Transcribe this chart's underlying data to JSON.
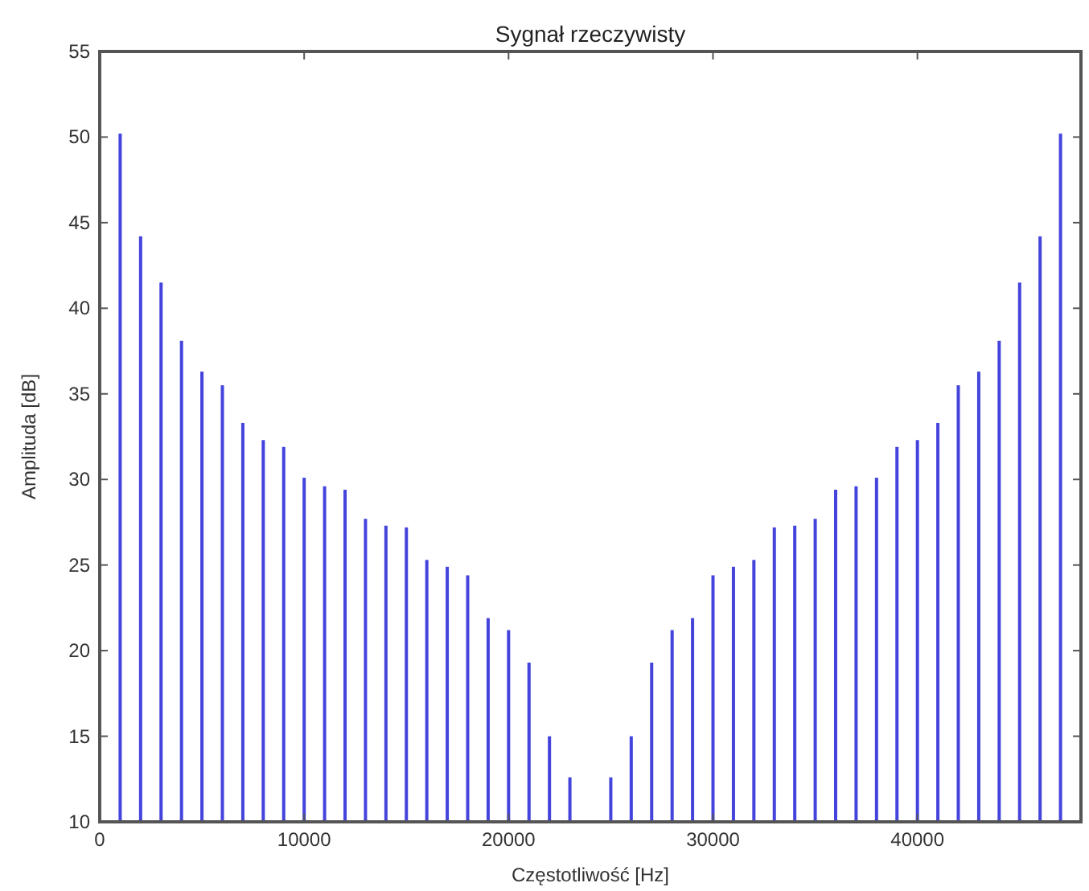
{
  "chart_data": {
    "type": "bar",
    "title": "Sygnał rzeczywisty",
    "xlabel": "Częstotliwość [Hz]",
    "ylabel": "Amplituda [dB]",
    "x": [
      1000,
      2000,
      3000,
      4000,
      5000,
      6000,
      7000,
      8000,
      9000,
      10000,
      11000,
      12000,
      13000,
      14000,
      15000,
      16000,
      17000,
      18000,
      19000,
      20000,
      21000,
      22000,
      23000,
      25000,
      26000,
      27000,
      28000,
      29000,
      30000,
      31000,
      32000,
      33000,
      34000,
      35000,
      36000,
      37000,
      38000,
      39000,
      40000,
      41000,
      42000,
      43000,
      44000,
      45000,
      46000,
      47000
    ],
    "series": [
      {
        "color": "#4444dd",
        "values": [
          50.2,
          44.2,
          41.5,
          38.1,
          36.3,
          35.5,
          33.3,
          32.3,
          31.9,
          30.1,
          29.6,
          29.4,
          27.7,
          27.3,
          27.2,
          25.3,
          24.9,
          24.4,
          21.9,
          21.2,
          19.3,
          15,
          12.6,
          12.6,
          15,
          19.3,
          21.2,
          21.9,
          24.4,
          24.9,
          25.3,
          27.2,
          27.3,
          27.7,
          29.4,
          29.6,
          30.1,
          31.9,
          32.3,
          33.3,
          35.5,
          36.3,
          38.1,
          41.5,
          44.2,
          50.2
        ]
      }
    ],
    "xlim": [
      0,
      48000
    ],
    "xticks": [
      0,
      10000,
      20000,
      30000,
      40000
    ],
    "ylim": [
      10,
      55
    ],
    "yticks": [
      10,
      15,
      20,
      25,
      30,
      35,
      40,
      45,
      50,
      55
    ],
    "grid": false
  }
}
